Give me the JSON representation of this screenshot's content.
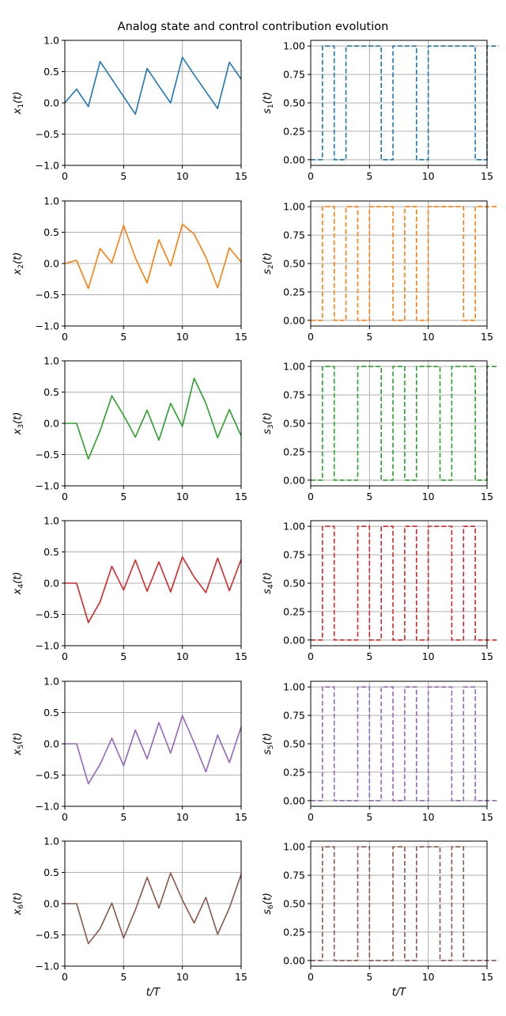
{
  "title": "Analog state and control contribution evolution",
  "colors": [
    "#1f77b4",
    "#ff7f0e",
    "#2ca02c",
    "#d62728",
    "#9467bd",
    "#8c564b"
  ],
  "chart_data": [
    {
      "type": "line",
      "panel": "x1",
      "ylabel_main": "x",
      "ylabel_sub": "1",
      "ylabel_tail": "(t)",
      "xlim": [
        0,
        15
      ],
      "ylim": [
        -1,
        1
      ],
      "xticks": [
        0,
        5,
        10,
        15
      ],
      "yticks": [
        -1.0,
        -0.5,
        0.0,
        0.5,
        1.0
      ],
      "ytick_labels": [
        "−1.0",
        "−0.5",
        "0.0",
        "0.5",
        "1.0"
      ],
      "grid": true,
      "x": [
        0,
        1,
        2,
        3,
        4,
        5,
        6,
        7,
        8,
        9,
        10,
        11,
        12,
        13,
        14,
        15
      ],
      "y": [
        0.0,
        0.22,
        -0.06,
        0.66,
        0.38,
        0.1,
        -0.18,
        0.55,
        0.27,
        0.0,
        0.73,
        0.45,
        0.18,
        -0.09,
        0.65,
        0.38
      ]
    },
    {
      "type": "line",
      "panel": "x2",
      "ylabel_main": "x",
      "ylabel_sub": "2",
      "ylabel_tail": "(t)",
      "xlim": [
        0,
        15
      ],
      "ylim": [
        -1,
        1
      ],
      "xticks": [
        0,
        5,
        10,
        15
      ],
      "yticks": [
        -1.0,
        -0.5,
        0.0,
        0.5,
        1.0
      ],
      "ytick_labels": [
        "−1.0",
        "−0.5",
        "0.0",
        "0.5",
        "1.0"
      ],
      "grid": true,
      "x": [
        0,
        1,
        2,
        3,
        4,
        5,
        6,
        7,
        8,
        9,
        10,
        11,
        12,
        13,
        14,
        15
      ],
      "y": [
        0.0,
        0.05,
        -0.4,
        0.24,
        0.01,
        0.61,
        0.09,
        -0.31,
        0.38,
        -0.04,
        0.63,
        0.47,
        0.1,
        -0.39,
        0.25,
        0.02
      ]
    },
    {
      "type": "line",
      "panel": "x3",
      "ylabel_main": "x",
      "ylabel_sub": "3",
      "ylabel_tail": "(t)",
      "xlim": [
        0,
        15
      ],
      "ylim": [
        -1,
        1
      ],
      "xticks": [
        0,
        5,
        10,
        15
      ],
      "yticks": [
        -1.0,
        -0.5,
        0.0,
        0.5,
        1.0
      ],
      "ytick_labels": [
        "−1.0",
        "−0.5",
        "0.0",
        "0.5",
        "1.0"
      ],
      "grid": true,
      "x": [
        0,
        1,
        2,
        3,
        4,
        5,
        6,
        7,
        8,
        9,
        10,
        11,
        12,
        13,
        14,
        15
      ],
      "y": [
        0.0,
        0.0,
        -0.57,
        -0.12,
        0.44,
        0.13,
        -0.22,
        0.21,
        -0.27,
        0.32,
        -0.05,
        0.72,
        0.32,
        -0.23,
        0.22,
        -0.2
      ]
    },
    {
      "type": "line",
      "panel": "x4",
      "ylabel_main": "x",
      "ylabel_sub": "4",
      "ylabel_tail": "(t)",
      "xlim": [
        0,
        15
      ],
      "ylim": [
        -1,
        1
      ],
      "xticks": [
        0,
        5,
        10,
        15
      ],
      "yticks": [
        -1.0,
        -0.5,
        0.0,
        0.5,
        1.0
      ],
      "ytick_labels": [
        "−1.0",
        "−0.5",
        "0.0",
        "0.5",
        "1.0"
      ],
      "grid": true,
      "x": [
        0,
        1,
        2,
        3,
        4,
        5,
        6,
        7,
        8,
        9,
        10,
        11,
        12,
        13,
        14,
        15
      ],
      "y": [
        0.0,
        0.0,
        -0.63,
        -0.3,
        0.27,
        -0.11,
        0.37,
        -0.13,
        0.34,
        -0.14,
        0.42,
        0.1,
        -0.15,
        0.4,
        -0.12,
        0.38
      ]
    },
    {
      "type": "line",
      "panel": "x5",
      "ylabel_main": "x",
      "ylabel_sub": "5",
      "ylabel_tail": "(t)",
      "xlim": [
        0,
        15
      ],
      "ylim": [
        -1,
        1
      ],
      "xticks": [
        0,
        5,
        10,
        15
      ],
      "yticks": [
        -1.0,
        -0.5,
        0.0,
        0.5,
        1.0
      ],
      "ytick_labels": [
        "−1.0",
        "−0.5",
        "0.0",
        "0.5",
        "1.0"
      ],
      "grid": true,
      "x": [
        0,
        1,
        2,
        3,
        4,
        5,
        6,
        7,
        8,
        9,
        10,
        11,
        12,
        13,
        14,
        15
      ],
      "y": [
        0.0,
        0.0,
        -0.64,
        -0.33,
        0.09,
        -0.35,
        0.22,
        -0.24,
        0.34,
        -0.15,
        0.45,
        0.02,
        -0.45,
        0.14,
        -0.3,
        0.27
      ]
    },
    {
      "type": "line",
      "panel": "x6",
      "ylabel_main": "x",
      "ylabel_sub": "6",
      "ylabel_tail": "(t)",
      "xlabel": "t/T",
      "xlim": [
        0,
        15
      ],
      "ylim": [
        -1,
        1
      ],
      "xticks": [
        0,
        5,
        10,
        15
      ],
      "yticks": [
        -1.0,
        -0.5,
        0.0,
        0.5,
        1.0
      ],
      "ytick_labels": [
        "−1.0",
        "−0.5",
        "0.0",
        "0.5",
        "1.0"
      ],
      "grid": true,
      "x": [
        0,
        1,
        2,
        3,
        4,
        5,
        6,
        7,
        8,
        9,
        10,
        11,
        12,
        13,
        14,
        15
      ],
      "y": [
        0.0,
        0.0,
        -0.64,
        -0.4,
        0.01,
        -0.55,
        -0.1,
        0.42,
        -0.07,
        0.49,
        0.06,
        -0.31,
        0.1,
        -0.49,
        -0.07,
        0.47
      ]
    },
    {
      "type": "step",
      "panel": "s1",
      "linestyle": "dashed",
      "ylabel_main": "s",
      "ylabel_sub": "1",
      "ylabel_tail": "(t)",
      "xlim": [
        0,
        15
      ],
      "ylim": [
        -0.05,
        1.05
      ],
      "xticks": [
        0,
        5,
        10,
        15
      ],
      "yticks": [
        0.0,
        0.25,
        0.5,
        0.75,
        1.0
      ],
      "ytick_labels": [
        "0.00",
        "0.25",
        "0.50",
        "0.75",
        "1.00"
      ],
      "grid": true,
      "values": [
        0,
        1,
        0,
        1,
        1,
        1,
        0,
        1,
        1,
        0,
        1,
        1,
        1,
        1,
        0,
        1
      ]
    },
    {
      "type": "step",
      "panel": "s2",
      "linestyle": "dashed",
      "ylabel_main": "s",
      "ylabel_sub": "2",
      "ylabel_tail": "(t)",
      "xlim": [
        0,
        15
      ],
      "ylim": [
        -0.05,
        1.05
      ],
      "xticks": [
        0,
        5,
        10,
        15
      ],
      "yticks": [
        0.0,
        0.25,
        0.5,
        0.75,
        1.0
      ],
      "ytick_labels": [
        "0.00",
        "0.25",
        "0.50",
        "0.75",
        "1.00"
      ],
      "grid": true,
      "values": [
        0,
        1,
        0,
        1,
        0,
        1,
        1,
        0,
        1,
        0,
        1,
        1,
        1,
        0,
        1,
        1
      ]
    },
    {
      "type": "step",
      "panel": "s3",
      "linestyle": "dashed",
      "ylabel_main": "s",
      "ylabel_sub": "3",
      "ylabel_tail": "(t)",
      "xlim": [
        0,
        15
      ],
      "ylim": [
        -0.05,
        1.05
      ],
      "xticks": [
        0,
        5,
        10,
        15
      ],
      "yticks": [
        0.0,
        0.25,
        0.5,
        0.75,
        1.0
      ],
      "ytick_labels": [
        "0.00",
        "0.25",
        "0.50",
        "0.75",
        "1.00"
      ],
      "grid": true,
      "values": [
        0,
        1,
        0,
        0,
        1,
        1,
        0,
        1,
        0,
        1,
        1,
        0,
        1,
        1,
        0,
        1
      ]
    },
    {
      "type": "step",
      "panel": "s4",
      "linestyle": "dashed",
      "ylabel_main": "s",
      "ylabel_sub": "4",
      "ylabel_tail": "(t)",
      "xlim": [
        0,
        15
      ],
      "ylim": [
        -0.05,
        1.05
      ],
      "xticks": [
        0,
        5,
        10,
        15
      ],
      "yticks": [
        0.0,
        0.25,
        0.5,
        0.75,
        1.0
      ],
      "ytick_labels": [
        "0.00",
        "0.25",
        "0.50",
        "0.75",
        "1.00"
      ],
      "grid": true,
      "values": [
        0,
        1,
        0,
        0,
        1,
        0,
        1,
        0,
        1,
        0,
        1,
        1,
        0,
        1,
        0,
        0
      ]
    },
    {
      "type": "step",
      "panel": "s5",
      "linestyle": "dashed",
      "ylabel_main": "s",
      "ylabel_sub": "5",
      "ylabel_tail": "(t)",
      "xlim": [
        0,
        15
      ],
      "ylim": [
        -0.05,
        1.05
      ],
      "xticks": [
        0,
        5,
        10,
        15
      ],
      "yticks": [
        0.0,
        0.25,
        0.5,
        0.75,
        1.0
      ],
      "ytick_labels": [
        "0.00",
        "0.25",
        "0.50",
        "0.75",
        "1.00"
      ],
      "grid": true,
      "values": [
        0,
        1,
        0,
        0,
        1,
        0,
        1,
        0,
        1,
        0,
        1,
        1,
        0,
        1,
        0,
        0
      ]
    },
    {
      "type": "step",
      "panel": "s6",
      "linestyle": "dashed",
      "ylabel_main": "s",
      "ylabel_sub": "6",
      "ylabel_tail": "(t)",
      "xlabel": "t/T",
      "xlim": [
        0,
        15
      ],
      "ylim": [
        -0.05,
        1.05
      ],
      "xticks": [
        0,
        5,
        10,
        15
      ],
      "yticks": [
        0.0,
        0.25,
        0.5,
        0.75,
        1.0
      ],
      "ytick_labels": [
        "0.00",
        "0.25",
        "0.50",
        "0.75",
        "1.00"
      ],
      "grid": true,
      "values": [
        0,
        1,
        0,
        0,
        1,
        0,
        0,
        1,
        0,
        1,
        1,
        0,
        1,
        0,
        0,
        0
      ]
    }
  ]
}
